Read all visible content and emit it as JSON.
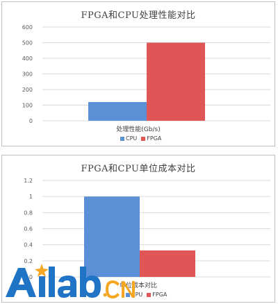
{
  "chart_data": [
    {
      "type": "bar",
      "title": "FPGA和CPU处理性能对比",
      "categories": [
        "处理性能(Gb/s)"
      ],
      "series": [
        {
          "name": "CPU",
          "values": [
            120
          ],
          "color": "#5b8fd6"
        },
        {
          "name": "FPGA",
          "values": [
            500
          ],
          "color": "#e05555"
        }
      ],
      "xlabel": "处理性能(Gb/s)",
      "ylabel": "",
      "ylim": [
        0,
        600
      ],
      "yticks": [
        "0",
        "100",
        "200",
        "300",
        "400",
        "500",
        "600"
      ],
      "grid": true,
      "legend": "bottom"
    },
    {
      "type": "bar",
      "title": "FPGA和CPU单位成本对比",
      "categories": [
        "单位成本对比"
      ],
      "series": [
        {
          "name": "CPU",
          "values": [
            1
          ],
          "color": "#5b8fd6"
        },
        {
          "name": "FPGA",
          "values": [
            0.33
          ],
          "color": "#e05555"
        }
      ],
      "xlabel": "单位成本对比",
      "ylabel": "",
      "ylim": [
        0,
        1.2
      ],
      "yticks": [
        "0",
        "0.2",
        "0.4",
        "0.6",
        "0.8",
        "1",
        "1.2"
      ],
      "grid": true,
      "legend": "bottom"
    }
  ],
  "watermark": {
    "text": "Ailab",
    "suffix": ".CN",
    "colors": {
      "blue": "#1f74c6",
      "orange": "#f5a623"
    }
  }
}
